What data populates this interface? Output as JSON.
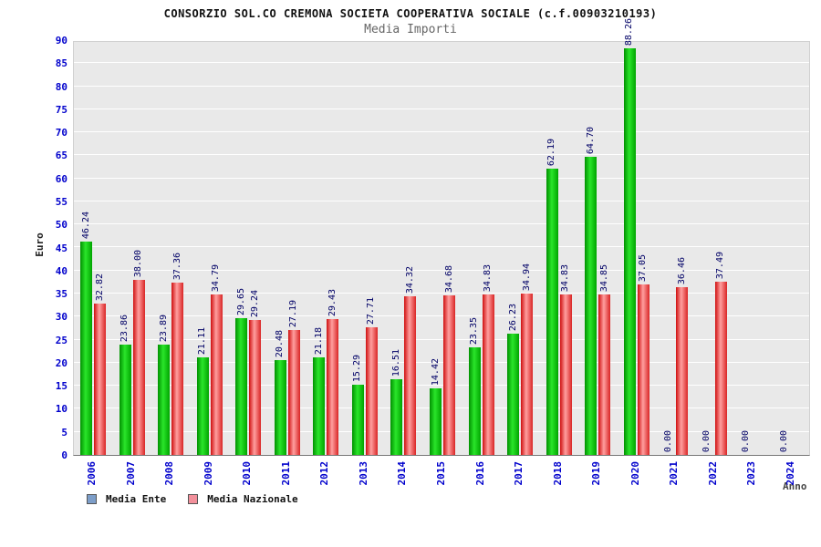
{
  "header": {
    "title": "CONSORZIO SOL.CO CREMONA SOCIETA COOPERATIVA SOCIALE (c.f.00903210193)",
    "subtitle": "Media Importi"
  },
  "chart_data": {
    "type": "bar",
    "title": "Media Importi",
    "xlabel": "Anno",
    "ylabel": "Euro",
    "ylim": [
      0,
      90
    ],
    "ytick_step": 5,
    "grid": true,
    "legend_position": "bottom-left",
    "categories": [
      "2006",
      "2007",
      "2008",
      "2009",
      "2010",
      "2011",
      "2012",
      "2013",
      "2014",
      "2015",
      "2016",
      "2017",
      "2018",
      "2019",
      "2020",
      "2021",
      "2022",
      "2023",
      "2024"
    ],
    "series": [
      {
        "name": "Media Ente",
        "color": "#00c000",
        "values": [
          46.24,
          23.86,
          23.89,
          21.11,
          29.65,
          20.48,
          21.18,
          15.29,
          16.51,
          14.42,
          23.35,
          26.23,
          62.19,
          64.7,
          88.26,
          0.0,
          0.0,
          0.0,
          0.0
        ]
      },
      {
        "name": "Media Nazionale",
        "color": "#e03030",
        "values": [
          32.82,
          38.0,
          37.36,
          34.79,
          29.24,
          27.19,
          29.43,
          27.71,
          34.32,
          34.68,
          34.83,
          34.94,
          34.83,
          34.85,
          37.05,
          36.46,
          37.49,
          null,
          null
        ]
      }
    ],
    "legend": [
      {
        "label": "Media Ente",
        "swatch": "#7d9ec9"
      },
      {
        "label": "Media Nazionale",
        "swatch": "#f2909b"
      }
    ],
    "value_label_color": "#000066",
    "axis_label_color": "#0000cc",
    "plot_background": "#e9e9e9"
  }
}
